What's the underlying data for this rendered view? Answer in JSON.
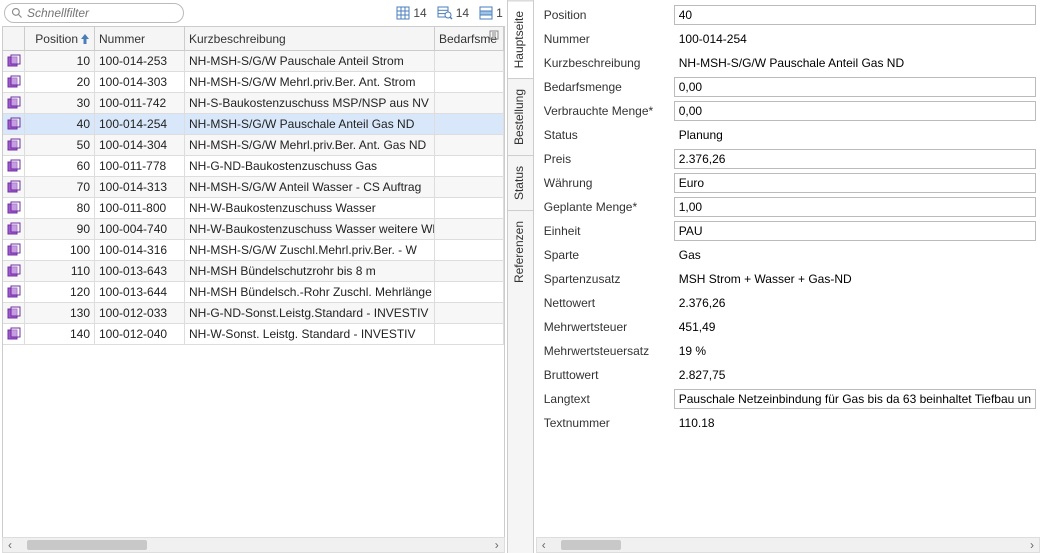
{
  "filter": {
    "placeholder": "Schnellfilter"
  },
  "toolbarCounts": {
    "grid": "14",
    "filtered": "14",
    "selected": "1"
  },
  "colors": {
    "rowIconPrimary": "#a05ad0",
    "rowIconAccent": "#7030a0",
    "toolbarIcon": "#4a7ebb",
    "toolbarIconAccent": "#5b9bd5",
    "sortArrow": "#4a7ebb"
  },
  "columns": {
    "position": "Position",
    "nummer": "Nummer",
    "kurz": "Kurzbeschreibung",
    "bedarf": "Bedarfsme"
  },
  "rows": [
    {
      "pos": "10",
      "num": "100-014-253",
      "desc": "NH-MSH-S/G/W Pauschale Anteil Strom"
    },
    {
      "pos": "20",
      "num": "100-014-303",
      "desc": "NH-MSH-S/G/W Mehrl.priv.Ber. Ant. Strom"
    },
    {
      "pos": "30",
      "num": "100-011-742",
      "desc": "NH-S-Baukostenzuschuss MSP/NSP aus NV"
    },
    {
      "pos": "40",
      "num": "100-014-254",
      "desc": "NH-MSH-S/G/W Pauschale Anteil Gas ND",
      "selected": true
    },
    {
      "pos": "50",
      "num": "100-014-304",
      "desc": "NH-MSH-S/G/W Mehrl.priv.Ber. Ant. Gas ND"
    },
    {
      "pos": "60",
      "num": "100-011-778",
      "desc": "NH-G-ND-Baukostenzuschuss Gas"
    },
    {
      "pos": "70",
      "num": "100-014-313",
      "desc": "NH-MSH-S/G/W Anteil Wasser - CS Auftrag"
    },
    {
      "pos": "80",
      "num": "100-011-800",
      "desc": "NH-W-Baukostenzuschuss Wasser"
    },
    {
      "pos": "90",
      "num": "100-004-740",
      "desc": "NH-W-Baukostenzuschuss Wasser weitere WE"
    },
    {
      "pos": "100",
      "num": "100-014-316",
      "desc": "NH-MSH-S/G/W Zuschl.Mehrl.priv.Ber. - W"
    },
    {
      "pos": "110",
      "num": "100-013-643",
      "desc": "NH-MSH Bündelschutzrohr bis 8 m"
    },
    {
      "pos": "120",
      "num": "100-013-644",
      "desc": "NH-MSH Bündelsch.-Rohr Zuschl. Mehrlänge"
    },
    {
      "pos": "130",
      "num": "100-012-033",
      "desc": "NH-G-ND-Sonst.Leistg.Standard - INVESTIV"
    },
    {
      "pos": "140",
      "num": "100-012-040",
      "desc": "NH-W-Sonst. Leistg. Standard - INVESTIV"
    }
  ],
  "tabs": [
    "Hauptseite",
    "Bestellung",
    "Status",
    "Referenzen"
  ],
  "detail": [
    {
      "label": "Position",
      "value": "40",
      "boxed": true
    },
    {
      "label": "Nummer",
      "value": "100-014-254"
    },
    {
      "label": "Kurzbeschreibung",
      "value": "NH-MSH-S/G/W Pauschale Anteil Gas ND"
    },
    {
      "label": "Bedarfsmenge",
      "value": "0,00",
      "boxed": true
    },
    {
      "label": "Verbrauchte Menge*",
      "value": "0,00",
      "boxed": true
    },
    {
      "label": "Status",
      "value": "Planung"
    },
    {
      "label": "Preis",
      "value": "2.376,26",
      "boxed": true
    },
    {
      "label": "Währung",
      "value": "Euro",
      "boxed": true
    },
    {
      "label": "Geplante Menge*",
      "value": "1,00",
      "boxed": true
    },
    {
      "label": "Einheit",
      "value": "PAU",
      "boxed": true
    },
    {
      "label": "Sparte",
      "value": "Gas"
    },
    {
      "label": "Spartenzusatz",
      "value": "MSH Strom + Wasser + Gas-ND"
    },
    {
      "label": "Nettowert",
      "value": "2.376,26"
    },
    {
      "label": "Mehrwertsteuer",
      "value": "451,49"
    },
    {
      "label": "Mehrwertsteuersatz",
      "value": "19 %"
    },
    {
      "label": "Bruttowert",
      "value": "2.827,75"
    },
    {
      "label": "Langtext",
      "value": "Pauschale Netzeinbindung für Gas bis da 63 beinhaltet Tiefbau un",
      "boxed": true
    },
    {
      "label": "Textnummer",
      "value": "110.18"
    }
  ]
}
